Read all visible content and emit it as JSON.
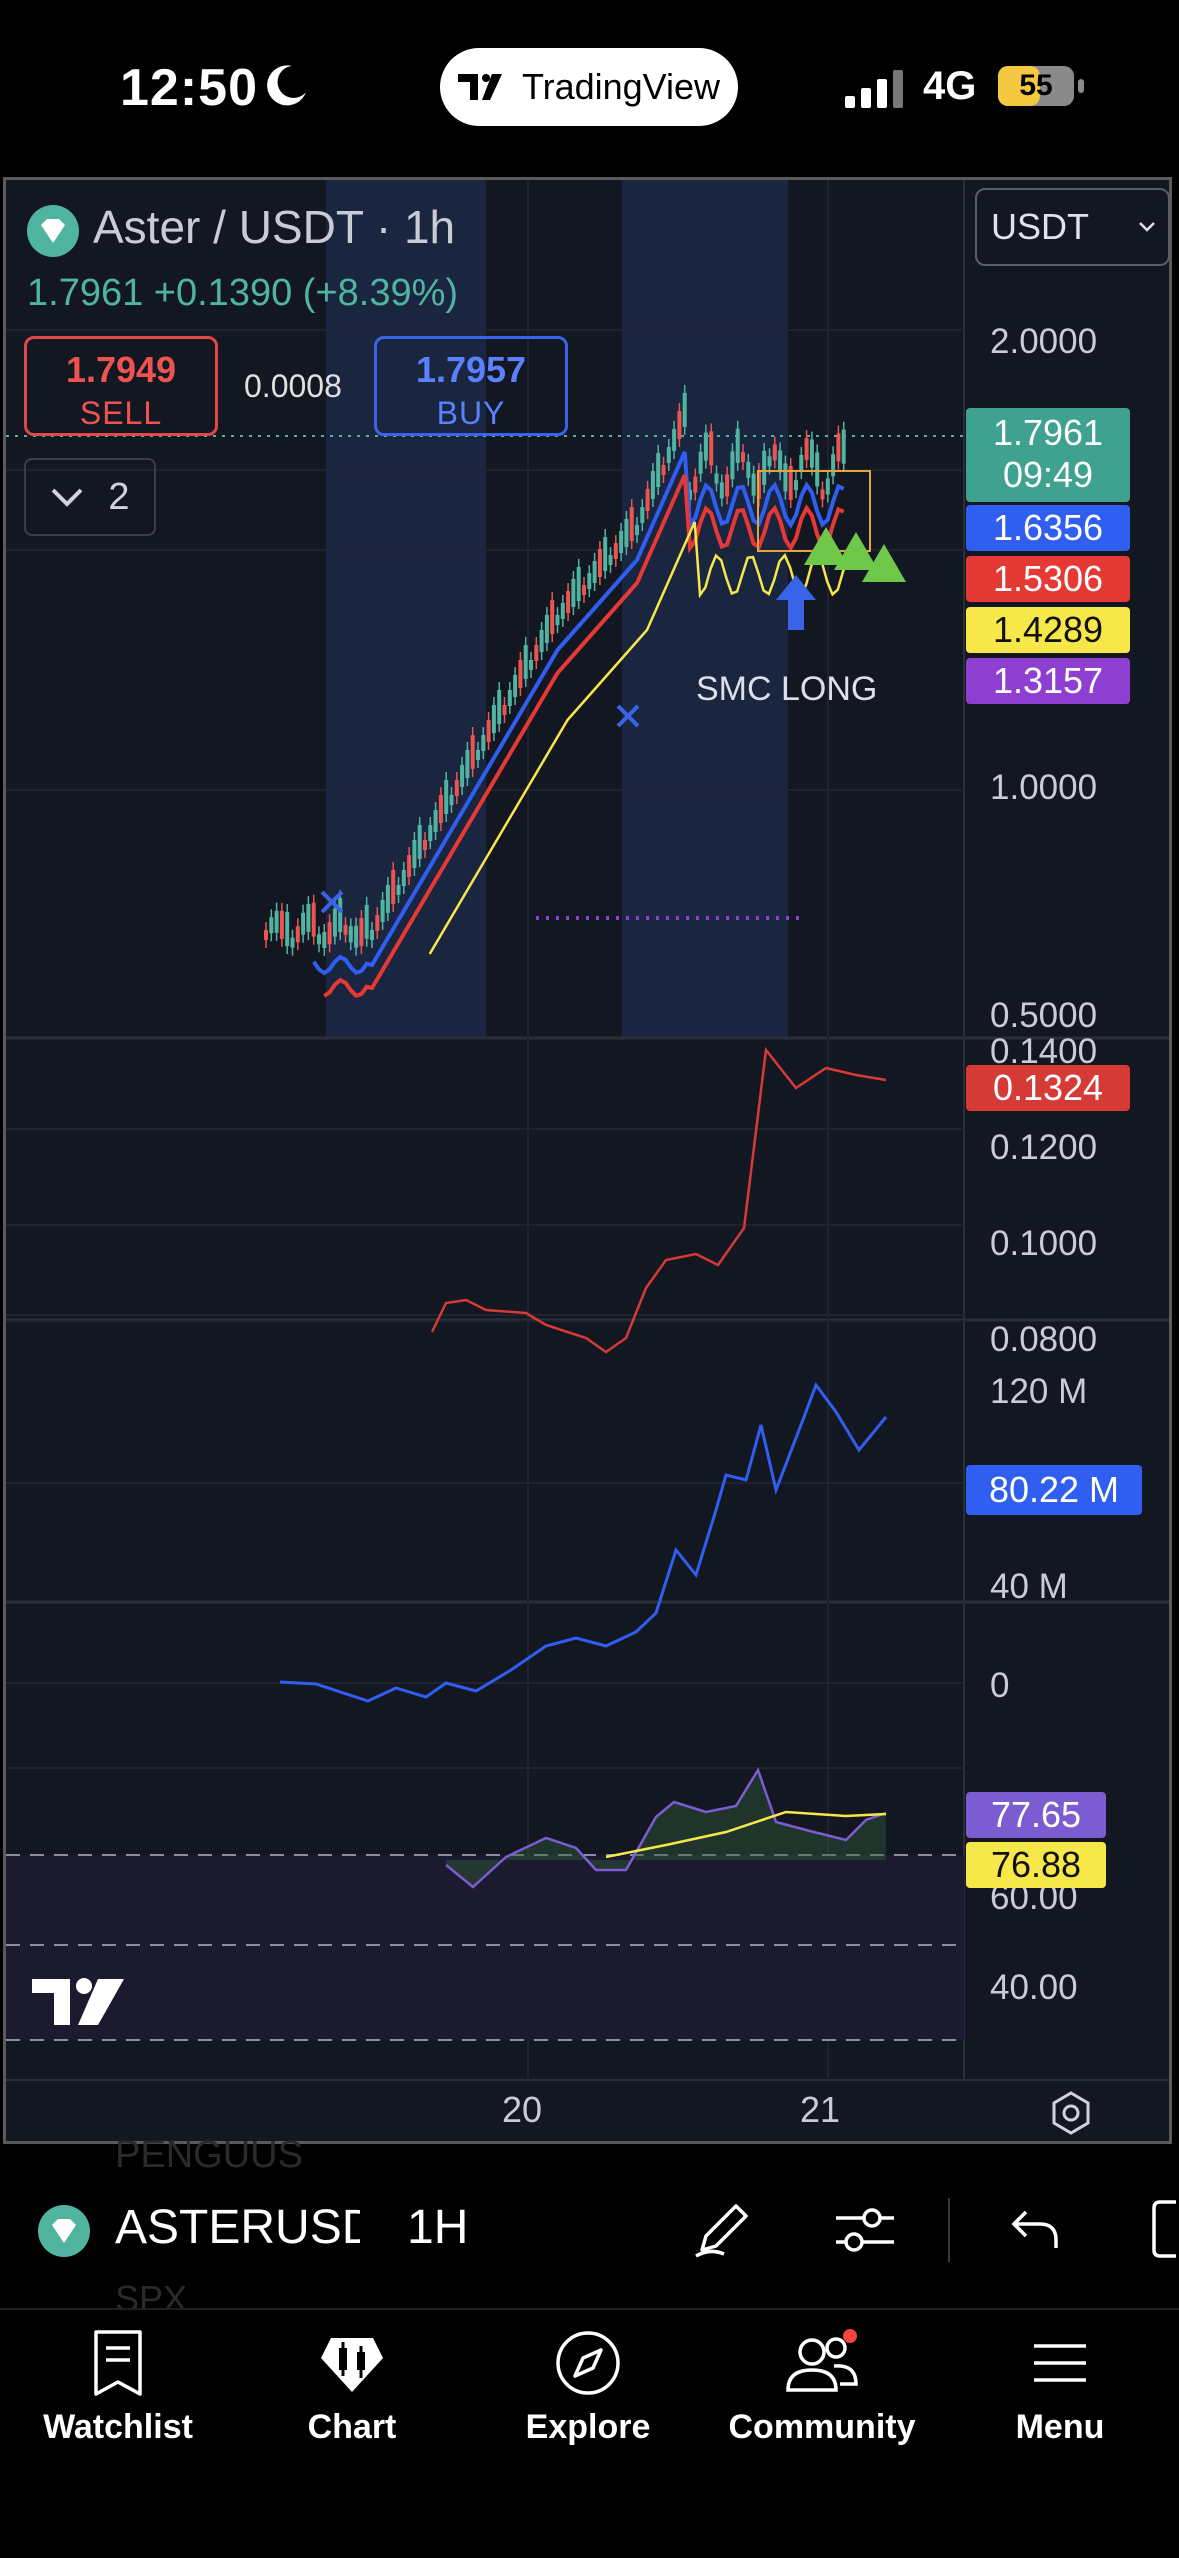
{
  "status_bar": {
    "time": "12:50",
    "network": "4G",
    "battery": "55",
    "battery_level": 0.55,
    "app_pill_label": "TradingView"
  },
  "chart": {
    "symbol_title": "Aster / USDT · 1h",
    "last_price": "1.7961",
    "change": "+0.1390",
    "change_pct": "(+8.39%)",
    "sell_price": "1.7949",
    "sell_label": "SELL",
    "buy_price": "1.7957",
    "buy_label": "BUY",
    "spread": "0.0008",
    "indicator_count": "2",
    "currency": "USDT",
    "strategy_label": "SMC LONG",
    "price_axis": [
      "2.0000",
      "1.0000",
      "0.5000"
    ],
    "price_tags": [
      {
        "value": "1.7961",
        "sub": "09:49",
        "color": "#3fa18f"
      },
      {
        "value": "1.6356",
        "color": "#2f5ef0"
      },
      {
        "value": "1.5306",
        "color": "#e53935"
      },
      {
        "value": "1.4289",
        "color": "#f7e84a"
      },
      {
        "value": "1.3157",
        "color": "#8e3fd0"
      }
    ],
    "pane2_axis": [
      "0.1400",
      "0.1200",
      "0.1000",
      "0.0800"
    ],
    "pane2_tag": "0.1324",
    "pane3_axis": [
      "120 M",
      "40 M",
      "0"
    ],
    "pane3_tag": "80.22 M",
    "pane4_axis": [
      "60.00",
      "40.00"
    ],
    "pane4_tags": [
      {
        "value": "77.65",
        "color": "#7c5cd1"
      },
      {
        "value": "76.88",
        "color": "#f7e84a"
      }
    ],
    "time_axis": [
      "20",
      "21"
    ],
    "colors": {
      "up": "#4fb5a0",
      "down": "#ef5350",
      "ema_fast": "#2f5ef0",
      "ema_mid": "#e53935",
      "ema_slow": "#f7e84a"
    }
  },
  "toolbar": {
    "symbol": "ASTERUSDT",
    "interval": "1H",
    "ghost_above": "PENGUUS",
    "ghost_below": "SPX",
    "icons": [
      "pen-icon",
      "sliders-icon",
      "undo-icon",
      "fullscreen-icon"
    ]
  },
  "tabs": [
    {
      "label": "Watchlist",
      "icon": "watchlist-icon"
    },
    {
      "label": "Chart",
      "icon": "chart-icon"
    },
    {
      "label": "Explore",
      "icon": "compass-icon"
    },
    {
      "label": "Community",
      "icon": "community-icon"
    },
    {
      "label": "Menu",
      "icon": "menu-icon"
    }
  ]
}
